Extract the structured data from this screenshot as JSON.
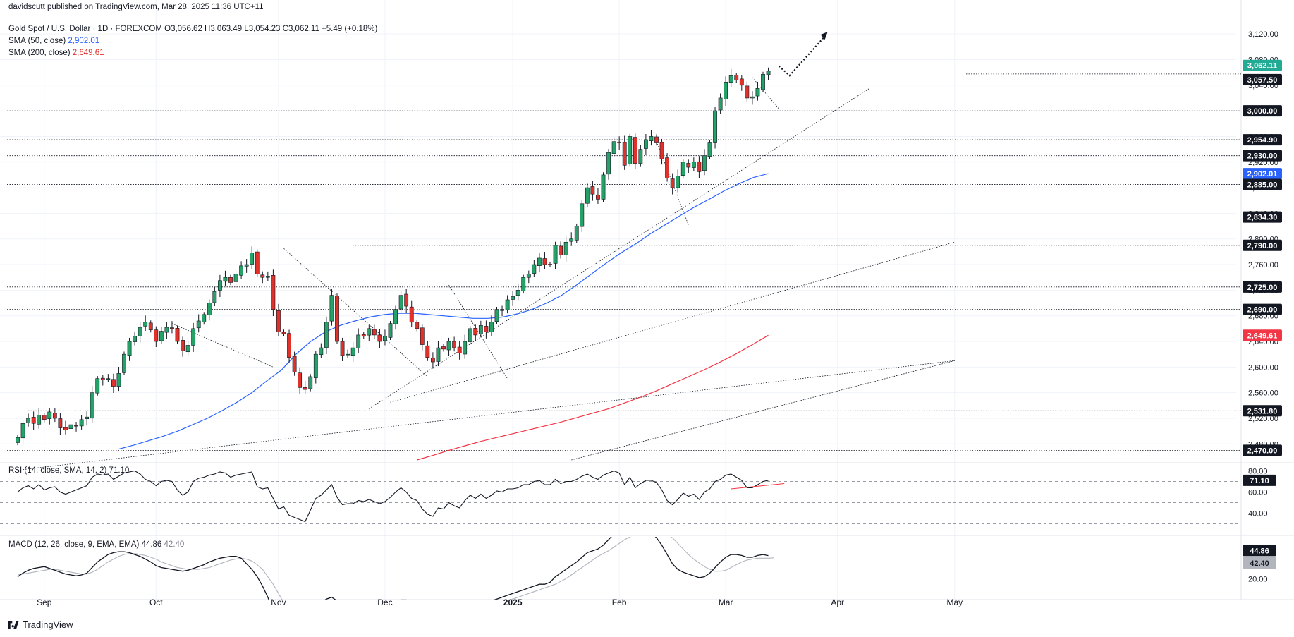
{
  "header": {
    "published": "davidscutt published on TradingView.com, Mar 28, 2025 11:36 UTC+11",
    "symbol_line": "Gold Spot / U.S. Dollar · 1D · FOREXCOM",
    "ohlc": "O3,056.62 H3,063.49 L3,054.23 C3,062.11 +5.49 (+0.18%)",
    "sma50_label": "SMA (50, close)",
    "sma50_value": "2,902.01",
    "sma200_label": "SMA (200, close)",
    "sma200_value": "2,649.61"
  },
  "rsi_header": {
    "label": "RSI (14, close, SMA, 14, 2)",
    "value": "71.10"
  },
  "macd_header": {
    "label": "MACD (12, 26, close, 9, EMA, EMA)",
    "value1": "44.86",
    "value2": "42.40"
  },
  "footer": {
    "brand": "TradingView"
  },
  "colors": {
    "up": "#26a269",
    "down": "#e0312b",
    "sma50": "#2962ff",
    "sma200": "#f23645",
    "grid": "#f0f3fa",
    "badge_dark": "#131722",
    "badge_green": "#22ab94",
    "badge_blue": "#2962ff",
    "badge_red": "#f23645",
    "badge_grey": "#b2b5be"
  },
  "chart_data": [
    {
      "type": "candlestick",
      "title": "Gold Spot / U.S. Dollar",
      "x_ticks": [
        "Sep",
        "Oct",
        "Nov",
        "Dec",
        "2025",
        "Feb",
        "Mar",
        "Apr",
        "May"
      ],
      "y_ticks": [
        3120,
        3080,
        3040,
        3000,
        2960,
        2920,
        2880,
        2840,
        2800,
        2760,
        2720,
        2680,
        2640,
        2600,
        2560,
        2520,
        2480
      ],
      "ylim": [
        2455,
        3140
      ],
      "closes": [
        2490,
        2512,
        2520,
        2512,
        2525,
        2518,
        2530,
        2520,
        2505,
        2502,
        2510,
        2508,
        2518,
        2522,
        2560,
        2582,
        2580,
        2582,
        2570,
        2590,
        2620,
        2640,
        2648,
        2662,
        2670,
        2658,
        2640,
        2656,
        2662,
        2660,
        2640,
        2625,
        2634,
        2660,
        2672,
        2682,
        2700,
        2718,
        2735,
        2740,
        2732,
        2745,
        2758,
        2760,
        2778,
        2745,
        2740,
        2742,
        2690,
        2655,
        2652,
        2615,
        2592,
        2568,
        2565,
        2585,
        2620,
        2630,
        2670,
        2712,
        2640,
        2618,
        2620,
        2630,
        2650,
        2648,
        2660,
        2650,
        2640,
        2648,
        2668,
        2690,
        2712,
        2695,
        2670,
        2660,
        2635,
        2615,
        2608,
        2630,
        2628,
        2640,
        2630,
        2622,
        2640,
        2660,
        2650,
        2665,
        2655,
        2670,
        2690,
        2690,
        2705,
        2710,
        2720,
        2740,
        2745,
        2760,
        2770,
        2760,
        2760,
        2790,
        2775,
        2795,
        2800,
        2820,
        2855,
        2880,
        2870,
        2862,
        2900,
        2935,
        2952,
        2950,
        2915,
        2960,
        2918,
        2940,
        2955,
        2960,
        2950,
        2925,
        2895,
        2880,
        2898,
        2920,
        2912,
        2920,
        2905,
        2930,
        2950,
        3000,
        3020,
        3045,
        3055,
        3048,
        3040,
        3020,
        3022,
        3035,
        3057,
        3062
      ],
      "sma50": [
        2472,
        2478,
        2485,
        2492,
        2500,
        2510,
        2520,
        2532,
        2545,
        2560,
        2578,
        2595,
        2620,
        2640,
        2655,
        2665,
        2672,
        2678,
        2682,
        2684,
        2684,
        2682,
        2680,
        2678,
        2676,
        2676,
        2678,
        2683,
        2690,
        2700,
        2712,
        2728,
        2745,
        2762,
        2778,
        2792,
        2808,
        2822,
        2836,
        2850,
        2862,
        2875,
        2886,
        2896,
        2902.01
      ],
      "sma200": [
        2455,
        2462,
        2470,
        2477,
        2484,
        2490,
        2496,
        2502,
        2508,
        2514,
        2521,
        2528,
        2535,
        2544,
        2553,
        2563,
        2574,
        2585,
        2596,
        2608,
        2621,
        2635,
        2649.61
      ],
      "price_labels": [
        "3,062.11",
        "3,057.50",
        "3,000.00",
        "2,954.90",
        "2,930.00",
        "2,902.01",
        "2,885.00",
        "2,834.30",
        "2,790.00",
        "2,725.00",
        "2,690.00",
        "2,649.61",
        "2,531.80",
        "2,470.00"
      ],
      "series": [
        {
          "name": "SMA (50, close)",
          "last": 2902.01
        },
        {
          "name": "SMA (200, close)",
          "last": 2649.61
        }
      ]
    },
    {
      "type": "line",
      "title": "RSI (14, close, SMA, 14, 2)",
      "y_ticks": [
        80,
        60,
        40
      ],
      "ylim": [
        25,
        85
      ],
      "last": 71.1,
      "values": [
        60,
        64,
        66,
        63,
        67,
        62,
        64,
        65,
        60,
        58,
        60,
        62,
        64,
        66,
        74,
        77,
        76,
        77,
        72,
        75,
        78,
        79,
        80,
        77,
        72,
        70,
        66,
        70,
        71,
        70,
        62,
        57,
        60,
        70,
        73,
        74,
        76,
        77,
        79,
        78,
        74,
        76,
        77,
        78,
        79,
        65,
        63,
        64,
        54,
        44,
        46,
        38,
        36,
        34,
        32,
        43,
        54,
        57,
        62,
        67,
        55,
        48,
        49,
        49,
        52,
        51,
        53,
        51,
        49,
        51,
        55,
        60,
        64,
        60,
        54,
        52,
        44,
        39,
        37,
        45,
        44,
        50,
        47,
        45,
        52,
        57,
        54,
        58,
        54,
        57,
        61,
        60,
        63,
        63,
        64,
        67,
        67,
        70,
        71,
        67,
        67,
        72,
        68,
        70,
        70,
        72,
        75,
        77,
        74,
        72,
        76,
        78,
        80,
        78,
        67,
        74,
        64,
        68,
        71,
        71,
        69,
        62,
        52,
        48,
        53,
        59,
        56,
        58,
        53,
        60,
        63,
        70,
        72,
        76,
        77,
        74,
        71,
        64,
        64,
        67,
        70,
        71.1
      ],
      "rsi_ma_tail": [
        63,
        64,
        65,
        66,
        67,
        68
      ]
    },
    {
      "type": "line",
      "title": "MACD (12, 26, close, 9, EMA, EMA)",
      "y_ticks": [
        20
      ],
      "ylim": [
        5,
        62
      ],
      "series": [
        {
          "name": "MACD",
          "last": 44.86
        },
        {
          "name": "Signal",
          "last": 42.4
        }
      ],
      "macd": [
        22,
        26,
        29,
        31,
        32,
        33,
        31,
        29,
        27,
        25,
        24,
        23,
        24,
        26,
        32,
        38,
        42,
        46,
        48,
        49,
        49,
        48,
        46,
        44,
        41,
        38,
        34,
        32,
        31,
        30,
        29,
        28,
        29,
        31,
        33,
        35,
        38,
        40,
        42,
        43,
        44,
        44,
        42,
        36,
        30,
        22,
        12,
        0,
        -14,
        -24,
        -32,
        -38,
        -40,
        -36,
        -28,
        -18,
        -10,
        -6,
        -2,
        0,
        -4,
        -8,
        -12,
        -14,
        -14,
        -12,
        -10,
        -9,
        -9,
        -8,
        -7,
        -5,
        -3,
        -3,
        -6,
        -10,
        -14,
        -18,
        -20,
        -19,
        -17,
        -15,
        -14,
        -13,
        -12,
        -10,
        -8,
        -7,
        -6,
        -4,
        -2,
        0,
        2,
        4,
        6,
        8,
        10,
        12,
        14,
        14,
        16,
        22,
        26,
        30,
        34,
        38,
        43,
        48,
        50,
        52,
        56,
        62,
        68,
        72,
        74,
        74,
        76,
        74,
        72,
        70,
        64,
        56,
        46,
        36,
        30,
        27,
        25,
        23,
        21,
        22,
        26,
        32,
        38,
        43,
        46,
        46,
        45,
        43,
        43,
        45,
        46,
        44.86
      ],
      "signal": [
        24,
        25,
        26,
        27,
        28,
        29,
        30,
        30,
        29,
        28,
        27,
        26,
        25,
        25,
        27,
        30,
        34,
        38,
        41,
        44,
        46,
        47,
        47,
        46,
        45,
        43,
        41,
        38,
        36,
        34,
        32,
        31,
        30,
        30,
        30,
        31,
        32,
        34,
        36,
        38,
        40,
        41,
        42,
        41,
        39,
        35,
        30,
        22,
        14,
        4,
        -6,
        -15,
        -22,
        -28,
        -32,
        -32,
        -29,
        -25,
        -21,
        -17,
        -14,
        -12,
        -12,
        -12,
        -13,
        -13,
        -12,
        -12,
        -11,
        -10,
        -9,
        -8,
        -7,
        -6,
        -6,
        -7,
        -9,
        -11,
        -13,
        -15,
        -16,
        -16,
        -16,
        -15,
        -14,
        -13,
        -12,
        -11,
        -10,
        -9,
        -7,
        -6,
        -4,
        -2,
        0,
        2,
        4,
        6,
        8,
        10,
        12,
        14,
        17,
        20,
        24,
        28,
        32,
        36,
        40,
        44,
        47,
        50,
        54,
        58,
        62,
        65,
        68,
        70,
        71,
        71,
        71,
        70,
        68,
        64,
        58,
        52,
        46,
        41,
        37,
        33,
        30,
        28,
        28,
        29,
        32,
        35,
        38,
        40,
        41,
        42,
        42,
        42,
        42.4
      ]
    }
  ]
}
